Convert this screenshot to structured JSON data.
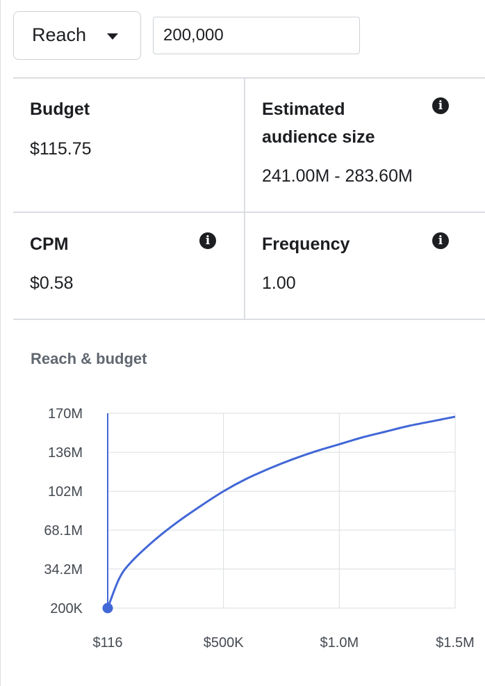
{
  "controls": {
    "objective_select": {
      "selected": "Reach",
      "icon": "caret-down-icon"
    },
    "value_input": {
      "value": "200,000"
    }
  },
  "metrics": {
    "budget": {
      "title": "Budget",
      "value": "$115.75"
    },
    "audience": {
      "title_line1": "Estimated",
      "title_line2": "audience size",
      "value": "241.00M - 283.60M",
      "icon": "info-icon"
    },
    "cpm": {
      "title": "CPM",
      "value": "$0.58",
      "icon": "info-icon"
    },
    "frequency": {
      "title": "Frequency",
      "value": "1.00",
      "icon": "info-icon"
    }
  },
  "colors": {
    "accent": "#4267d6",
    "grid": "#dadde1",
    "text": "#1c1e21",
    "muted": "#606770"
  },
  "chart_data": {
    "type": "line",
    "title": "Reach & budget",
    "x_tick_labels": [
      "$116",
      "$500K",
      "$1.0M",
      "$1.5M"
    ],
    "x_tick_values": [
      116,
      500000,
      1000000,
      1500000
    ],
    "y_tick_labels": [
      "200K",
      "34.2M",
      "68.1M",
      "102M",
      "136M",
      "170M"
    ],
    "y_tick_values": [
      200000,
      34200000,
      68100000,
      102000000,
      136000000,
      170000000
    ],
    "xlim": [
      116,
      1500000
    ],
    "ylim": [
      200000,
      170000000
    ],
    "grid": true,
    "series": [
      {
        "x": [
          116,
          50000,
          100000,
          200000,
          300000,
          400000,
          500000,
          600000,
          700000,
          800000,
          900000,
          1000000,
          1100000,
          1200000,
          1300000,
          1400000,
          1500000
        ],
        "y": [
          200000,
          26000000,
          40000000,
          59000000,
          75000000,
          89000000,
          102000000,
          113000000,
          122000000,
          130000000,
          137000000,
          143000000,
          149000000,
          154000000,
          159000000,
          163000000,
          167000000
        ]
      }
    ],
    "marker": {
      "x": 116,
      "y": 200000
    }
  }
}
